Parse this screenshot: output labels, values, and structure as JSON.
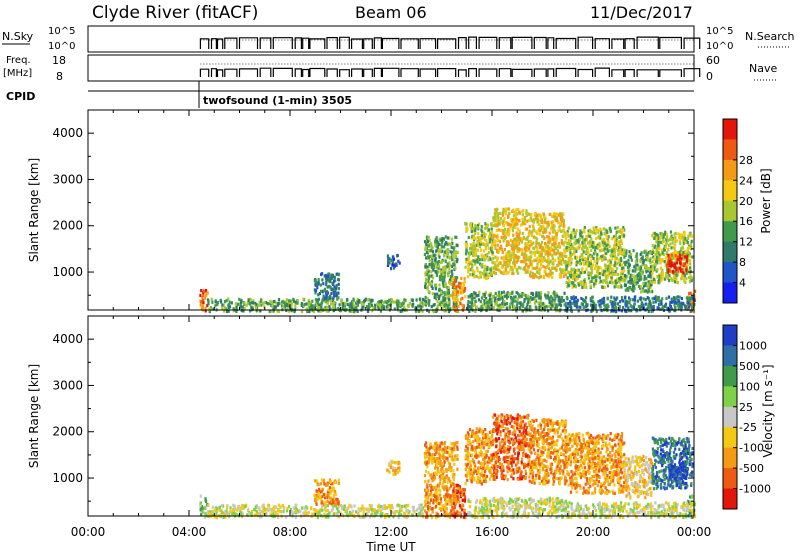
{
  "header": {
    "station": "Clyde River (fitACF)",
    "beam": "Beam 06",
    "date": "11/Dec/2017"
  },
  "noise_panel": {
    "left_label": "N.Sky",
    "left_ticks": [
      "10^5",
      "10^0"
    ],
    "right_label": "N.Search",
    "right_ticks": [
      "10^5",
      "10^0"
    ]
  },
  "freq_panel": {
    "left_label_1": "Freq.",
    "left_label_2": "[MHz]",
    "left_ticks": [
      "18",
      "8"
    ],
    "right_label": "Nave",
    "right_ticks": [
      "60",
      "0"
    ]
  },
  "cpid": {
    "label": "CPID",
    "program": "twofsound (1-min) 3505"
  },
  "x_axis": {
    "label": "Time UT",
    "ticks": [
      "00:00",
      "04:00",
      "08:00",
      "12:00",
      "16:00",
      "20:00",
      "00:00"
    ]
  },
  "chart_data": [
    {
      "type": "heatmap",
      "name": "power",
      "ylabel": "Slant Range [km]",
      "ylim": [
        180,
        4500
      ],
      "yticks": [
        "1000",
        "2000",
        "3000",
        "4000"
      ],
      "xlim_hours": [
        0,
        24
      ],
      "colorbar": {
        "label": "Power [dB]",
        "ticks": [
          "4",
          "8",
          "12",
          "16",
          "20",
          "24",
          "28"
        ],
        "colors": [
          "#1420f0",
          "#1f55c8",
          "#2f7a6a",
          "#3f9a4c",
          "#a8c832",
          "#f5c814",
          "#f59a14",
          "#ee5a12",
          "#e4160c"
        ]
      },
      "echo_regions": [
        {
          "t0": 4.4,
          "t1": 4.7,
          "r0": 180,
          "r1": 650,
          "level": 7
        },
        {
          "t0": 4.7,
          "t1": 13.3,
          "r0": 180,
          "r1": 450,
          "level": 3
        },
        {
          "t0": 8.9,
          "t1": 9.9,
          "r0": 450,
          "r1": 1000,
          "level": 2
        },
        {
          "t0": 11.8,
          "t1": 12.3,
          "r0": 1100,
          "r1": 1400,
          "level": 1
        },
        {
          "t0": 13.3,
          "t1": 14.6,
          "r0": 180,
          "r1": 1800,
          "level": 3
        },
        {
          "t0": 14.4,
          "t1": 14.9,
          "r0": 180,
          "r1": 900,
          "level": 6
        },
        {
          "t0": 14.9,
          "t1": 16.0,
          "r0": 900,
          "r1": 2100,
          "level": 4
        },
        {
          "t0": 15.0,
          "t1": 18.9,
          "r0": 180,
          "r1": 600,
          "level": 3
        },
        {
          "t0": 16.0,
          "t1": 17.4,
          "r0": 1000,
          "r1": 2400,
          "level": 5
        },
        {
          "t0": 17.4,
          "t1": 18.9,
          "r0": 900,
          "r1": 2300,
          "level": 5
        },
        {
          "t0": 18.9,
          "t1": 21.2,
          "r0": 700,
          "r1": 2000,
          "level": 4
        },
        {
          "t0": 21.2,
          "t1": 22.3,
          "r0": 600,
          "r1": 1500,
          "level": 3
        },
        {
          "t0": 22.3,
          "t1": 23.9,
          "r0": 800,
          "r1": 1900,
          "level": 4
        },
        {
          "t0": 22.9,
          "t1": 23.7,
          "r0": 1000,
          "r1": 1400,
          "level": 8
        },
        {
          "t0": 23.7,
          "t1": 24.0,
          "r0": 180,
          "r1": 650,
          "level": 6
        },
        {
          "t0": 18.9,
          "t1": 24.0,
          "r0": 180,
          "r1": 500,
          "level": 2
        }
      ]
    },
    {
      "type": "heatmap",
      "name": "velocity",
      "ylabel": "Slant Range [km]",
      "ylim": [
        180,
        4500
      ],
      "yticks": [
        "1000",
        "2000",
        "3000",
        "4000"
      ],
      "xlim_hours": [
        0,
        24
      ],
      "colorbar": {
        "label": "Velocity [m s⁻¹]",
        "ticks": [
          "1000",
          "500",
          "100",
          "25",
          "-25",
          "-100",
          "-500",
          "-1000"
        ],
        "colors": [
          "#1e3ec8",
          "#2f6fa6",
          "#3f9a4c",
          "#7ed24a",
          "#c8c8c8",
          "#f5c814",
          "#f59a14",
          "#ee5a12",
          "#e4160c"
        ]
      },
      "echo_regions": [
        {
          "t0": 4.4,
          "t1": 4.7,
          "r0": 180,
          "r1": 650,
          "level": 3
        },
        {
          "t0": 4.7,
          "t1": 13.3,
          "r0": 180,
          "r1": 450,
          "level": 4
        },
        {
          "t0": 8.9,
          "t1": 9.9,
          "r0": 450,
          "r1": 1000,
          "level": 6
        },
        {
          "t0": 11.8,
          "t1": 12.3,
          "r0": 1100,
          "r1": 1400,
          "level": 5
        },
        {
          "t0": 13.3,
          "t1": 14.6,
          "r0": 180,
          "r1": 1800,
          "level": 6
        },
        {
          "t0": 14.4,
          "t1": 14.9,
          "r0": 180,
          "r1": 900,
          "level": 7
        },
        {
          "t0": 14.9,
          "t1": 16.0,
          "r0": 900,
          "r1": 2100,
          "level": 6
        },
        {
          "t0": 15.0,
          "t1": 18.9,
          "r0": 180,
          "r1": 600,
          "level": 4
        },
        {
          "t0": 16.0,
          "t1": 17.4,
          "r0": 1000,
          "r1": 2400,
          "level": 7
        },
        {
          "t0": 17.4,
          "t1": 18.9,
          "r0": 900,
          "r1": 2300,
          "level": 6
        },
        {
          "t0": 18.9,
          "t1": 21.2,
          "r0": 700,
          "r1": 2000,
          "level": 6
        },
        {
          "t0": 21.2,
          "t1": 22.3,
          "r0": 600,
          "r1": 1500,
          "level": 5
        },
        {
          "t0": 22.3,
          "t1": 23.9,
          "r0": 800,
          "r1": 1900,
          "level": 1
        },
        {
          "t0": 22.9,
          "t1": 23.7,
          "r0": 1000,
          "r1": 1400,
          "level": 0
        },
        {
          "t0": 23.7,
          "t1": 24.0,
          "r0": 180,
          "r1": 650,
          "level": 2
        },
        {
          "t0": 18.9,
          "t1": 24.0,
          "r0": 180,
          "r1": 500,
          "level": 4
        }
      ]
    }
  ]
}
